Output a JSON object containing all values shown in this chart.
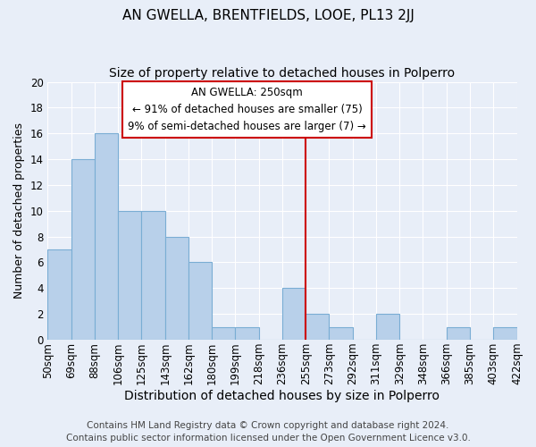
{
  "title": "AN GWELLA, BRENTFIELDS, LOOE, PL13 2JJ",
  "subtitle": "Size of property relative to detached houses in Polperro",
  "xlabel": "Distribution of detached houses by size in Polperro",
  "ylabel": "Number of detached properties",
  "bar_values": [
    7,
    14,
    16,
    10,
    10,
    8,
    6,
    1,
    1,
    0,
    4,
    2,
    1,
    0,
    2,
    0,
    0,
    1,
    0,
    1
  ],
  "bar_labels": [
    "50sqm",
    "69sqm",
    "88sqm",
    "106sqm",
    "125sqm",
    "143sqm",
    "162sqm",
    "180sqm",
    "199sqm",
    "218sqm",
    "236sqm",
    "255sqm",
    "273sqm",
    "292sqm",
    "311sqm",
    "329sqm",
    "348sqm",
    "366sqm",
    "385sqm",
    "403sqm",
    "422sqm"
  ],
  "bar_color": "#b8d0ea",
  "bar_edge_color": "#7aadd4",
  "vline_x": 11,
  "vline_color": "#cc0000",
  "annotation_title": "AN GWELLA: 250sqm",
  "annotation_line1": "← 91% of detached houses are smaller (75)",
  "annotation_line2": "9% of semi-detached houses are larger (7) →",
  "annotation_box_facecolor": "#ffffff",
  "annotation_box_edgecolor": "#cc0000",
  "ylim": [
    0,
    20
  ],
  "yticks": [
    0,
    2,
    4,
    6,
    8,
    10,
    12,
    14,
    16,
    18,
    20
  ],
  "bg_color": "#e8eef8",
  "grid_color": "#ffffff",
  "footer_line1": "Contains HM Land Registry data © Crown copyright and database right 2024.",
  "footer_line2": "Contains public sector information licensed under the Open Government Licence v3.0.",
  "title_fontsize": 11,
  "subtitle_fontsize": 10,
  "xlabel_fontsize": 10,
  "ylabel_fontsize": 9,
  "tick_fontsize": 8.5,
  "annotation_fontsize": 8.5,
  "footer_fontsize": 7.5
}
